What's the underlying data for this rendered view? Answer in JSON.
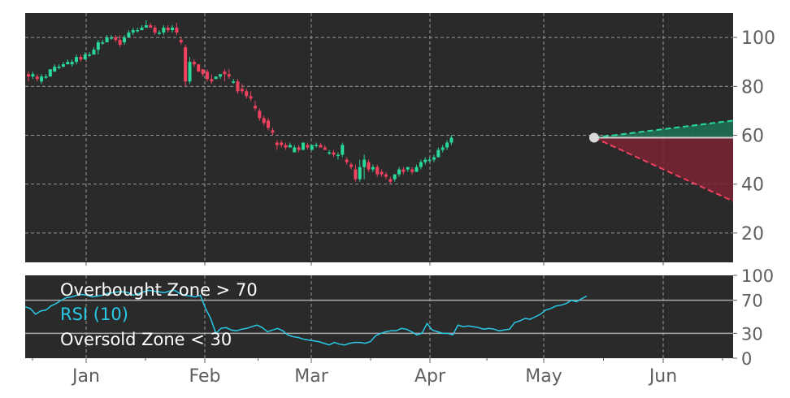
{
  "chart_data": [
    {
      "type": "candlestick",
      "title": "",
      "xlabel": "",
      "ylabel": "",
      "ylim": [
        8,
        110
      ],
      "y_ticks": [
        20,
        40,
        60,
        80,
        100
      ],
      "x_ticks": [
        "Jan",
        "Feb",
        "Mar",
        "Apr",
        "May",
        "Jun"
      ],
      "grid": true,
      "colors": {
        "up": "#29d99a",
        "down": "#f0415f",
        "background": "#2a2a2a",
        "grid": "#9a9a9a",
        "axis_text": "#5f5f5f"
      },
      "candles": [
        {
          "o": 85,
          "h": 86,
          "l": 82,
          "c": 84
        },
        {
          "o": 84,
          "h": 86,
          "l": 83,
          "c": 85
        },
        {
          "o": 84,
          "h": 85,
          "l": 82,
          "c": 83
        },
        {
          "o": 82,
          "h": 85,
          "l": 81,
          "c": 84
        },
        {
          "o": 84,
          "h": 85,
          "l": 83,
          "c": 84
        },
        {
          "o": 84,
          "h": 87,
          "l": 84,
          "c": 87
        },
        {
          "o": 86,
          "h": 89,
          "l": 86,
          "c": 88
        },
        {
          "o": 88,
          "h": 89,
          "l": 87,
          "c": 88
        },
        {
          "o": 88,
          "h": 90,
          "l": 88,
          "c": 89
        },
        {
          "o": 89,
          "h": 91,
          "l": 89,
          "c": 90
        },
        {
          "o": 89,
          "h": 91,
          "l": 88,
          "c": 90
        },
        {
          "o": 90,
          "h": 93,
          "l": 89,
          "c": 92
        },
        {
          "o": 92,
          "h": 93,
          "l": 90,
          "c": 91
        },
        {
          "o": 91,
          "h": 94,
          "l": 91,
          "c": 93
        },
        {
          "o": 93,
          "h": 94,
          "l": 92,
          "c": 93
        },
        {
          "o": 93,
          "h": 96,
          "l": 93,
          "c": 95
        },
        {
          "o": 95,
          "h": 99,
          "l": 93,
          "c": 98
        },
        {
          "o": 98,
          "h": 99,
          "l": 97,
          "c": 98
        },
        {
          "o": 98,
          "h": 101,
          "l": 98,
          "c": 100
        },
        {
          "o": 100,
          "h": 101,
          "l": 99,
          "c": 100
        },
        {
          "o": 100,
          "h": 101,
          "l": 98,
          "c": 99
        },
        {
          "o": 99,
          "h": 101,
          "l": 96,
          "c": 97
        },
        {
          "o": 98,
          "h": 101,
          "l": 97,
          "c": 100
        },
        {
          "o": 100,
          "h": 103,
          "l": 100,
          "c": 102
        },
        {
          "o": 102,
          "h": 104,
          "l": 101,
          "c": 103
        },
        {
          "o": 103,
          "h": 104,
          "l": 102,
          "c": 103
        },
        {
          "o": 103,
          "h": 105,
          "l": 103,
          "c": 104
        },
        {
          "o": 104,
          "h": 107,
          "l": 104,
          "c": 105
        },
        {
          "o": 105,
          "h": 106,
          "l": 104,
          "c": 104
        },
        {
          "o": 104,
          "h": 105,
          "l": 101,
          "c": 102
        },
        {
          "o": 102,
          "h": 103,
          "l": 101,
          "c": 102
        },
        {
          "o": 102,
          "h": 105,
          "l": 101,
          "c": 104
        },
        {
          "o": 104,
          "h": 105,
          "l": 102,
          "c": 103
        },
        {
          "o": 103,
          "h": 105,
          "l": 102,
          "c": 104
        },
        {
          "o": 104,
          "h": 106,
          "l": 101,
          "c": 102
        },
        {
          "o": 99,
          "h": 100,
          "l": 97,
          "c": 98
        },
        {
          "o": 96,
          "h": 97,
          "l": 80,
          "c": 82
        },
        {
          "o": 82,
          "h": 92,
          "l": 81,
          "c": 90
        },
        {
          "o": 90,
          "h": 91,
          "l": 88,
          "c": 89
        },
        {
          "o": 89,
          "h": 89,
          "l": 86,
          "c": 86
        },
        {
          "o": 87,
          "h": 87,
          "l": 84,
          "c": 85
        },
        {
          "o": 86,
          "h": 87,
          "l": 82,
          "c": 83
        },
        {
          "o": 83,
          "h": 85,
          "l": 81,
          "c": 82
        },
        {
          "o": 83,
          "h": 84,
          "l": 83,
          "c": 84
        },
        {
          "o": 84,
          "h": 85,
          "l": 83,
          "c": 85
        },
        {
          "o": 86,
          "h": 87,
          "l": 82,
          "c": 85
        },
        {
          "o": 85,
          "h": 87,
          "l": 83,
          "c": 84
        },
        {
          "o": 82,
          "h": 83,
          "l": 81,
          "c": 82
        },
        {
          "o": 82,
          "h": 83,
          "l": 77,
          "c": 78
        },
        {
          "o": 79,
          "h": 81,
          "l": 77,
          "c": 78
        },
        {
          "o": 78,
          "h": 79,
          "l": 75,
          "c": 76
        },
        {
          "o": 76,
          "h": 78,
          "l": 74,
          "c": 75
        },
        {
          "o": 72,
          "h": 74,
          "l": 70,
          "c": 71
        },
        {
          "o": 70,
          "h": 71,
          "l": 66,
          "c": 67
        },
        {
          "o": 67,
          "h": 68,
          "l": 64,
          "c": 65
        },
        {
          "o": 66,
          "h": 67,
          "l": 62,
          "c": 63
        },
        {
          "o": 62,
          "h": 63,
          "l": 60,
          "c": 61
        },
        {
          "o": 57,
          "h": 58,
          "l": 54,
          "c": 56
        },
        {
          "o": 57,
          "h": 58,
          "l": 55,
          "c": 56
        },
        {
          "o": 56,
          "h": 57,
          "l": 54,
          "c": 55
        },
        {
          "o": 55,
          "h": 57,
          "l": 55,
          "c": 56
        },
        {
          "o": 53,
          "h": 56,
          "l": 53,
          "c": 55
        },
        {
          "o": 55,
          "h": 56,
          "l": 53,
          "c": 54
        },
        {
          "o": 54,
          "h": 57,
          "l": 54,
          "c": 57
        },
        {
          "o": 56,
          "h": 57,
          "l": 54,
          "c": 55
        },
        {
          "o": 54,
          "h": 56,
          "l": 54,
          "c": 56
        },
        {
          "o": 56,
          "h": 57,
          "l": 55,
          "c": 56
        },
        {
          "o": 56,
          "h": 57,
          "l": 55,
          "c": 55
        },
        {
          "o": 55,
          "h": 56,
          "l": 54,
          "c": 54
        },
        {
          "o": 53,
          "h": 54,
          "l": 52,
          "c": 53
        },
        {
          "o": 53,
          "h": 54,
          "l": 51,
          "c": 52
        },
        {
          "o": 52,
          "h": 53,
          "l": 50,
          "c": 52
        },
        {
          "o": 52,
          "h": 57,
          "l": 51,
          "c": 56
        },
        {
          "o": 50,
          "h": 51,
          "l": 48,
          "c": 49
        },
        {
          "o": 48,
          "h": 49,
          "l": 46,
          "c": 47
        },
        {
          "o": 46,
          "h": 48,
          "l": 41,
          "c": 42
        },
        {
          "o": 42,
          "h": 50,
          "l": 41,
          "c": 47
        },
        {
          "o": 47,
          "h": 52,
          "l": 42,
          "c": 50
        },
        {
          "o": 49,
          "h": 50,
          "l": 45,
          "c": 46
        },
        {
          "o": 46,
          "h": 48,
          "l": 45,
          "c": 47
        },
        {
          "o": 47,
          "h": 48,
          "l": 43,
          "c": 44
        },
        {
          "o": 45,
          "h": 46,
          "l": 43,
          "c": 44
        },
        {
          "o": 44,
          "h": 45,
          "l": 42,
          "c": 43
        },
        {
          "o": 42,
          "h": 43,
          "l": 40,
          "c": 41
        },
        {
          "o": 42,
          "h": 44,
          "l": 41,
          "c": 44
        },
        {
          "o": 44,
          "h": 47,
          "l": 43,
          "c": 46
        },
        {
          "o": 46,
          "h": 47,
          "l": 44,
          "c": 45
        },
        {
          "o": 46,
          "h": 47,
          "l": 45,
          "c": 47
        },
        {
          "o": 46,
          "h": 47,
          "l": 44,
          "c": 45
        },
        {
          "o": 45,
          "h": 48,
          "l": 45,
          "c": 47
        },
        {
          "o": 47,
          "h": 50,
          "l": 46,
          "c": 49
        },
        {
          "o": 49,
          "h": 51,
          "l": 48,
          "c": 50
        },
        {
          "o": 50,
          "h": 51,
          "l": 49,
          "c": 50
        },
        {
          "o": 50,
          "h": 52,
          "l": 49,
          "c": 51
        },
        {
          "o": 51,
          "h": 55,
          "l": 51,
          "c": 54
        },
        {
          "o": 54,
          "h": 56,
          "l": 53,
          "c": 55
        },
        {
          "o": 55,
          "h": 58,
          "l": 54,
          "c": 57
        },
        {
          "o": 57,
          "h": 60,
          "l": 56,
          "c": 59
        }
      ],
      "forecast": {
        "start": 59,
        "upper_end": 66,
        "lower_end": 33
      }
    },
    {
      "type": "line",
      "title": "",
      "ylim": [
        0,
        100
      ],
      "y_ticks": [
        0,
        30,
        70,
        100
      ],
      "x_ticks": [
        "Jan",
        "Feb",
        "Mar",
        "Apr",
        "May",
        "Jun"
      ],
      "series": [
        {
          "name": "RSI (10)",
          "color": "#29c9e6",
          "values": [
            62,
            60,
            53,
            57,
            58,
            63,
            66,
            70,
            73,
            74,
            76,
            77,
            76,
            74,
            75,
            76,
            78,
            79,
            80,
            80,
            79,
            76,
            78,
            80,
            82,
            81,
            80,
            79,
            81,
            82,
            78,
            76,
            75,
            74,
            76,
            60,
            48,
            30,
            36,
            37,
            34,
            33,
            35,
            36,
            38,
            40,
            37,
            32,
            34,
            36,
            33,
            28,
            26,
            25,
            23,
            22,
            21,
            20,
            18,
            16,
            19,
            17,
            16,
            18,
            19,
            19,
            18,
            20,
            27,
            30,
            32,
            33,
            33,
            36,
            35,
            32,
            28,
            30,
            42,
            34,
            32,
            30,
            30,
            28,
            40,
            38,
            39,
            38,
            37,
            35,
            36,
            35,
            33,
            34,
            35,
            43,
            45,
            48,
            47,
            50,
            53,
            58,
            60,
            63,
            64,
            66,
            70,
            68,
            72,
            75
          ]
        }
      ],
      "reference_lines": [
        {
          "value": 70,
          "label": "Overbought Zone > 70"
        },
        {
          "value": 30,
          "label": "Oversold Zone < 30"
        }
      ]
    }
  ]
}
